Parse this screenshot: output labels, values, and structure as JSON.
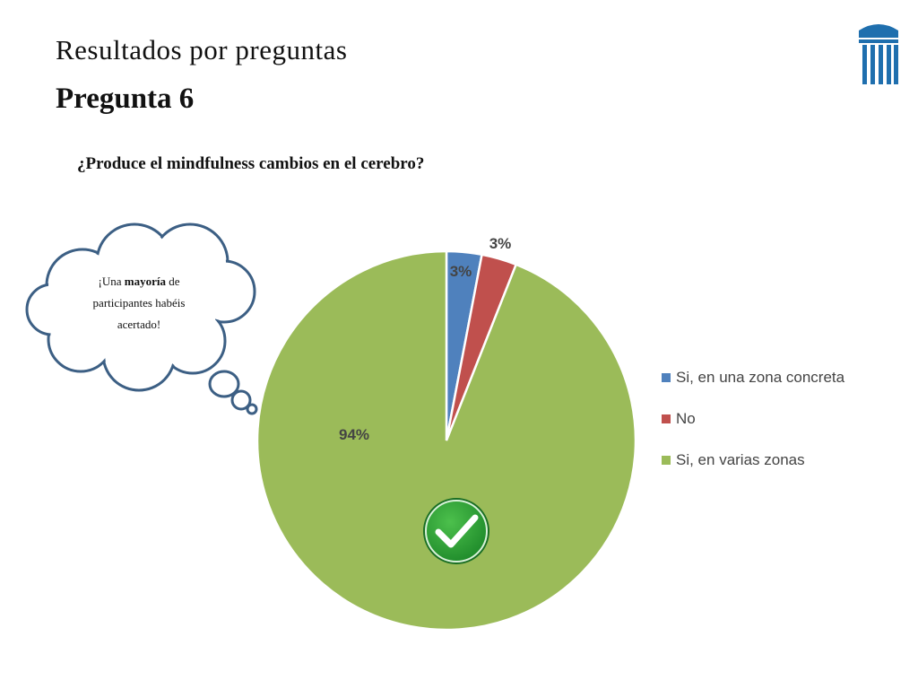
{
  "slide": {
    "header_title": "Resultados por preguntas",
    "question_number": "Pregunta 6"
  },
  "thought_bubble": {
    "prefix": "¡Una ",
    "emphasis": "mayoría",
    "suffix": " de participantes habéis acertado!"
  },
  "icons": {
    "logo": "columns-building-icon",
    "check": "green-check-badge-icon"
  },
  "chart_data": {
    "type": "pie",
    "title": "¿Produce el mindfulness cambios en el cerebro?",
    "categories": [
      "Si, en una zona concreta",
      "No",
      "Si, en varias zonas"
    ],
    "values": [
      3,
      3,
      94
    ],
    "data_labels": [
      "3%",
      "3%",
      "94%"
    ],
    "colors": [
      "#4f81bd",
      "#c0504d",
      "#9bbb59"
    ],
    "legend": {
      "position": "right",
      "entries": [
        "Si, en una zona concreta",
        "No",
        "Si, en varias zonas"
      ]
    }
  }
}
